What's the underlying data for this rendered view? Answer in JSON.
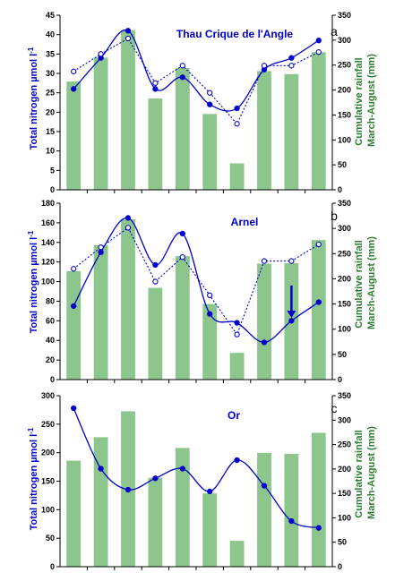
{
  "colors": {
    "bar": "#8cc68c",
    "line": "#0000cc",
    "axis": "#000000",
    "left_label": "#0000cc",
    "right_label": "#2e7d32"
  },
  "figure": {
    "left_axis_label_lines": [
      "Total nitrogen µmol l",
      "-1"
    ],
    "right_axis_label_lines": [
      "Cumulative rainfall",
      "March-August (mm)"
    ]
  },
  "chart_data": [
    {
      "type": "bar",
      "title": "Thau Crique de l'Angle",
      "panel_letter": "a",
      "n_categories": 10,
      "ylabel": "Total nitrogen µmol l-1",
      "y2label": "Cumulative rainfall March-August (mm)",
      "ylim": [
        0,
        45
      ],
      "yticks": [
        0,
        5,
        10,
        15,
        20,
        25,
        30,
        35,
        40,
        45
      ],
      "y2lim": [
        0,
        350
      ],
      "y2ticks": [
        0,
        50,
        100,
        150,
        200,
        250,
        300,
        350
      ],
      "rainfall_mm": [
        217,
        265,
        320,
        183,
        244,
        152,
        53,
        238,
        232,
        276
      ],
      "series": [
        {
          "style": "solid-line-filled-markers",
          "values": [
            26,
            34,
            41,
            26,
            29,
            22,
            21,
            31,
            34,
            38.5
          ]
        },
        {
          "style": "dotted-line-open-markers",
          "values": [
            30.5,
            35,
            39,
            27.5,
            32,
            25,
            17,
            32,
            32,
            35.5
          ]
        }
      ],
      "arrow": null
    },
    {
      "type": "bar",
      "title": "Arnel",
      "panel_letter": "b",
      "n_categories": 10,
      "ylabel": "Total nitrogen µmol l-1",
      "y2label": "Cumulative rainfall March-August (mm)",
      "ylim": [
        0,
        180
      ],
      "yticks": [
        0,
        20,
        40,
        60,
        80,
        100,
        120,
        140,
        160,
        180
      ],
      "y2lim": [
        0,
        350
      ],
      "y2ticks": [
        0,
        50,
        100,
        150,
        200,
        250,
        300,
        350
      ],
      "rainfall_mm": [
        215,
        267,
        318,
        182,
        245,
        150,
        53,
        230,
        231,
        277
      ],
      "series": [
        {
          "style": "solid-line-filled-markers",
          "values": [
            75,
            130,
            165,
            117,
            149,
            67,
            58,
            38,
            60,
            79
          ]
        },
        {
          "style": "dotted-line-open-markers",
          "values": [
            113,
            135,
            155,
            100,
            125,
            86,
            46,
            121,
            121,
            138
          ]
        }
      ],
      "arrow": {
        "category_index": 8,
        "from": 96,
        "to": 63
      }
    },
    {
      "type": "bar",
      "title": "Or",
      "panel_letter": "c",
      "n_categories": 10,
      "ylabel": "Total nitrogen µmol l-1",
      "y2label": "Cumulative rainfall March-August (mm)",
      "ylim": [
        0,
        300
      ],
      "yticks": [
        0,
        50,
        100,
        150,
        200,
        250,
        300
      ],
      "y2lim": [
        0,
        350
      ],
      "y2ticks": [
        0,
        50,
        100,
        150,
        200,
        250,
        300,
        350
      ],
      "rainfall_mm": [
        217,
        265,
        318,
        182,
        243,
        150,
        53,
        233,
        231,
        274
      ],
      "series": [
        {
          "style": "solid-line-filled-markers",
          "values": [
            278,
            172,
            135,
            155,
            172,
            132,
            187,
            142,
            80,
            68
          ]
        }
      ],
      "arrow": null
    }
  ]
}
